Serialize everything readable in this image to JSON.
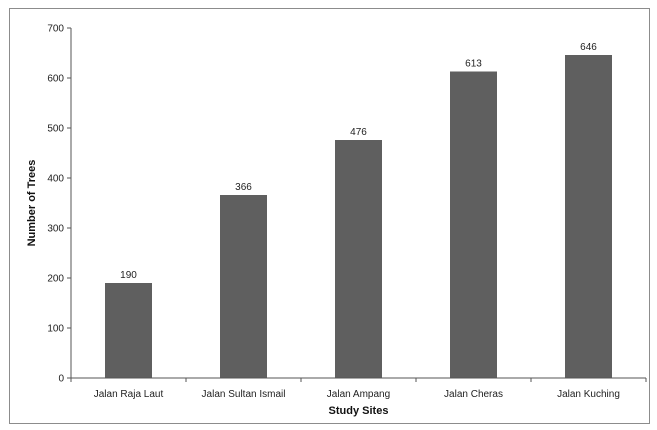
{
  "chart_data": {
    "type": "bar",
    "title": "",
    "xlabel": "Study Sites",
    "ylabel": "Number of Trees",
    "categories": [
      "Jalan Raja Laut",
      "Jalan Sultan Ismail",
      "Jalan Ampang",
      "Jalan Cheras",
      "Jalan Kuching"
    ],
    "values": [
      190,
      366,
      476,
      613,
      646
    ],
    "data_labels": [
      "190",
      "366",
      "476",
      "613",
      "646"
    ],
    "ylim": [
      0,
      700
    ],
    "yticks": [
      0,
      100,
      200,
      300,
      400,
      500,
      600,
      700
    ],
    "ytick_labels": [
      "0",
      "100",
      "200",
      "300",
      "400",
      "500",
      "600",
      "700"
    ],
    "grid": false,
    "legend": "none",
    "bar_color": "#5f5f5f"
  }
}
